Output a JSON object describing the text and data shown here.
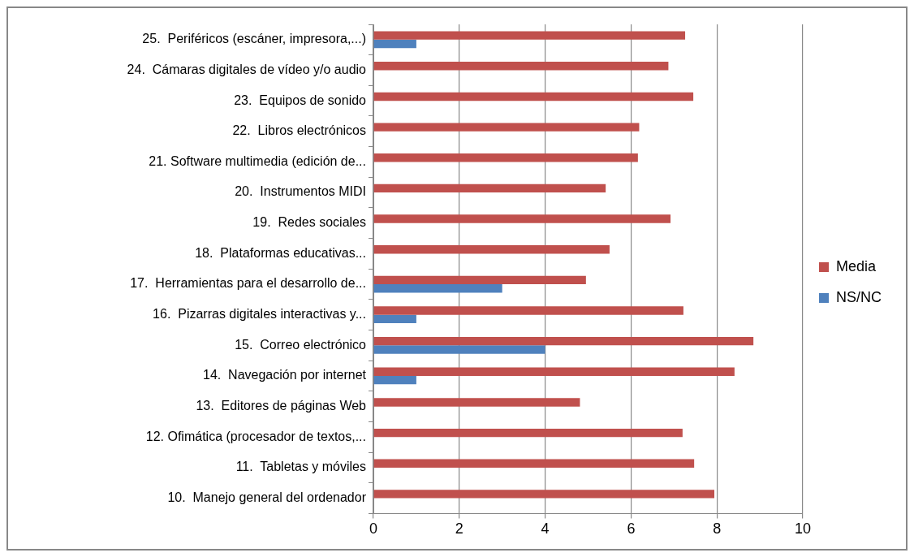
{
  "chart_data": {
    "type": "bar",
    "orientation": "horizontal",
    "categories": [
      "25.  Periféricos (escáner, impresora,...)",
      "24.  Cámaras digitales de vídeo y/o audio",
      "23.  Equipos de sonido",
      "22.  Libros electrónicos",
      "21. Software multimedia (edición de...",
      "20.  Instrumentos MIDI",
      "19.  Redes sociales",
      "18.  Plataformas educativas...",
      "17.  Herramientas para el desarrollo de...",
      "16.  Pizarras digitales interactivas y...",
      "15.  Correo electrónico",
      "14.  Navegación por internet",
      "13.  Editores de páginas Web",
      "12. Ofimática (procesador de textos,...",
      "11.  Tabletas y móviles",
      "10.  Manejo general del ordenador"
    ],
    "series": [
      {
        "name": "Media",
        "color": "#c0504d",
        "values": [
          7.26,
          6.87,
          7.45,
          6.19,
          6.16,
          5.41,
          6.92,
          5.5,
          4.95,
          7.22,
          8.85,
          8.41,
          4.81,
          7.2,
          7.47,
          7.94
        ]
      },
      {
        "name": "NS/NC",
        "color": "#4f81bd",
        "values": [
          1,
          null,
          null,
          null,
          null,
          null,
          null,
          null,
          3,
          1,
          4,
          1,
          null,
          null,
          null,
          null
        ]
      }
    ],
    "xlim": [
      0,
      10
    ],
    "xticks": [
      0,
      2,
      4,
      6,
      8,
      10
    ],
    "grid": "x",
    "legend": "right"
  }
}
